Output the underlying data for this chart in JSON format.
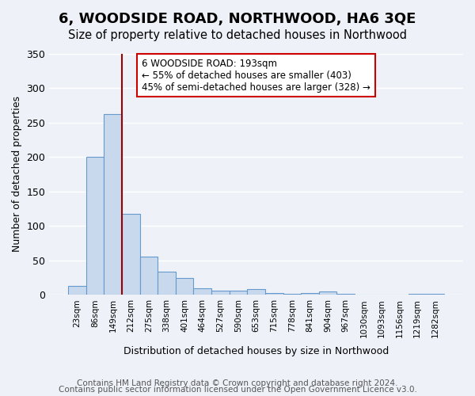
{
  "title": "6, WOODSIDE ROAD, NORTHWOOD, HA6 3QE",
  "subtitle": "Size of property relative to detached houses in Northwood",
  "xlabel": "Distribution of detached houses by size in Northwood",
  "ylabel": "Number of detached properties",
  "bin_labels": [
    "23sqm",
    "86sqm",
    "149sqm",
    "212sqm",
    "275sqm",
    "338sqm",
    "401sqm",
    "464sqm",
    "527sqm",
    "590sqm",
    "653sqm",
    "715sqm",
    "778sqm",
    "841sqm",
    "904sqm",
    "967sqm",
    "1030sqm",
    "1093sqm",
    "1156sqm",
    "1219sqm",
    "1282sqm"
  ],
  "bin_values": [
    13,
    200,
    262,
    118,
    55,
    34,
    24,
    10,
    6,
    6,
    8,
    3,
    2,
    3,
    5,
    1,
    0,
    0,
    0,
    2,
    1
  ],
  "bar_color": "#c8d9ed",
  "bar_edge_color": "#6699cc",
  "vline_color": "#990000",
  "annotation_lines": [
    "6 WOODSIDE ROAD: 193sqm",
    "← 55% of detached houses are smaller (403)",
    "45% of semi-detached houses are larger (328) →"
  ],
  "annotation_box_color": "#ffffff",
  "annotation_box_edge_color": "#cc0000",
  "ylim": [
    0,
    350
  ],
  "yticks": [
    0,
    50,
    100,
    150,
    200,
    250,
    300,
    350
  ],
  "footer_lines": [
    "Contains HM Land Registry data © Crown copyright and database right 2024.",
    "Contains public sector information licensed under the Open Government Licence v3.0."
  ],
  "bg_color": "#eef2f8",
  "plot_bg_color": "#eef2f8",
  "grid_color": "#ffffff",
  "title_fontsize": 13,
  "subtitle_fontsize": 10.5,
  "footer_fontsize": 7.5
}
